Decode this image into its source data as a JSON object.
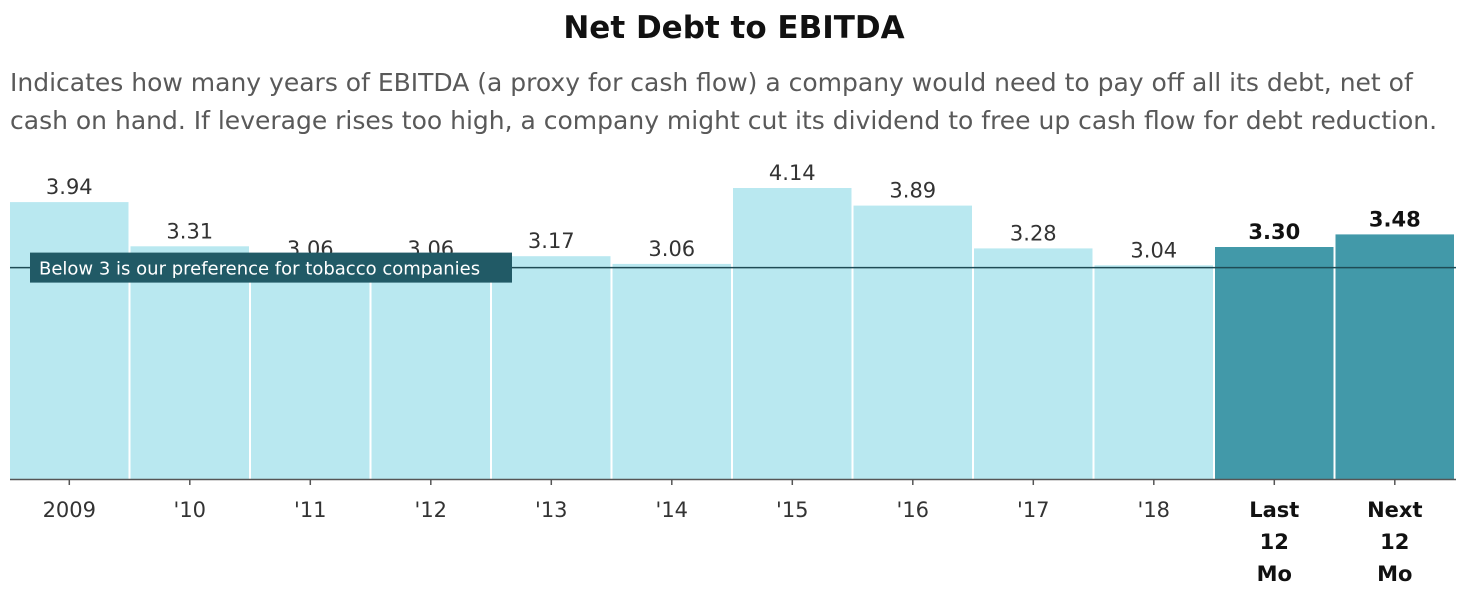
{
  "title": "Net Debt to EBITDA",
  "subtitle": "Indicates how many years of EBITDA (a proxy for cash flow) a company would need to pay off all its debt, net of cash on hand. If leverage rises too high, a company might cut its dividend to free up cash flow for debt reduction.",
  "colors": {
    "historical": "#b9e8f0",
    "projected": "#4299a9",
    "reference_line": "#1f4b55",
    "reference_label_bg": "#215a66"
  },
  "chart_data": {
    "type": "bar",
    "title": "Net Debt to EBITDA",
    "xlabel": "",
    "ylabel": "",
    "categories": [
      "2009",
      "'10",
      "'11",
      "'12",
      "'13",
      "'14",
      "'15",
      "'16",
      "'17",
      "'18",
      "Last 12 Mo",
      "Next 12 Mo"
    ],
    "category_lines": [
      [
        "2009"
      ],
      [
        "'10"
      ],
      [
        "'11"
      ],
      [
        "'12"
      ],
      [
        "'13"
      ],
      [
        "'14"
      ],
      [
        "'15"
      ],
      [
        "'16"
      ],
      [
        "'17"
      ],
      [
        "'18"
      ],
      [
        "Last",
        "12",
        "Mo"
      ],
      [
        "Next",
        "12",
        "Mo"
      ]
    ],
    "values": [
      3.94,
      3.31,
      3.06,
      3.06,
      3.17,
      3.06,
      4.14,
      3.89,
      3.28,
      3.04,
      3.3,
      3.48
    ],
    "value_labels": [
      "3.94",
      "3.31",
      "3.06",
      "3.06",
      "3.17",
      "3.06",
      "4.14",
      "3.89",
      "3.28",
      "3.04",
      "3.30",
      "3.48"
    ],
    "highlighted": [
      false,
      false,
      false,
      false,
      false,
      false,
      false,
      false,
      false,
      false,
      true,
      true
    ],
    "reference_line": {
      "value": 3.0,
      "label": "Below 3 is our preference for tobacco companies"
    },
    "ylim": [
      0,
      4.14
    ],
    "grid": false,
    "legend": "none"
  }
}
